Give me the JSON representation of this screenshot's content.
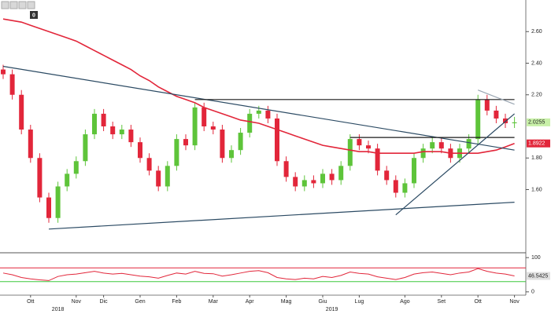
{
  "toolbar": {
    "badge": "0"
  },
  "chart_data": [
    {
      "type": "candlestick",
      "categories": [
        null,
        null,
        null,
        "Ott",
        null,
        null,
        null,
        null,
        "Nov",
        null,
        null,
        "Dic",
        null,
        null,
        null,
        "Gen",
        null,
        null,
        null,
        "Feb",
        null,
        null,
        null,
        "Mar",
        null,
        null,
        null,
        "Apr",
        null,
        null,
        null,
        "Mag",
        null,
        null,
        null,
        "Giu",
        null,
        null,
        null,
        "Lug",
        null,
        null,
        null,
        null,
        "Ago",
        null,
        null,
        null,
        "Set",
        null,
        null,
        null,
        "Ott",
        null,
        null,
        null,
        "Nov"
      ],
      "years": [
        null,
        null,
        null,
        null,
        null,
        null,
        "2018",
        null,
        null,
        null,
        null,
        null,
        null,
        null,
        null,
        null,
        null,
        null,
        null,
        null,
        null,
        null,
        null,
        null,
        null,
        null,
        null,
        null,
        null,
        null,
        null,
        null,
        null,
        null,
        null,
        null,
        "2019",
        null,
        null,
        null,
        null,
        null,
        null,
        null,
        null,
        null,
        null,
        null,
        null,
        null,
        null,
        null,
        null,
        null,
        null,
        null,
        null
      ],
      "open": [
        2.36,
        2.33,
        2.2,
        1.98,
        1.8,
        1.55,
        1.42,
        1.62,
        1.7,
        1.78,
        1.95,
        2.08,
        2.0,
        1.95,
        1.98,
        1.9,
        1.8,
        1.72,
        1.62,
        1.75,
        1.92,
        1.88,
        2.12,
        2.0,
        1.98,
        1.8,
        1.85,
        1.96,
        2.08,
        2.1,
        2.05,
        1.78,
        1.68,
        1.62,
        1.66,
        1.64,
        1.7,
        1.66,
        1.75,
        1.92,
        1.88,
        1.86,
        1.72,
        1.66,
        1.58,
        1.64,
        1.8,
        1.86,
        1.9,
        1.86,
        1.8,
        1.86,
        1.92,
        2.17,
        2.1,
        2.05,
        2.02
      ],
      "high": [
        2.39,
        2.36,
        2.23,
        2.01,
        1.83,
        1.58,
        1.65,
        1.73,
        1.81,
        1.98,
        2.11,
        2.11,
        2.03,
        2.01,
        2.01,
        1.93,
        1.83,
        1.75,
        1.78,
        1.95,
        1.95,
        2.15,
        2.15,
        2.03,
        2.01,
        1.88,
        1.99,
        2.11,
        2.13,
        2.13,
        2.08,
        1.81,
        1.71,
        1.69,
        1.69,
        1.73,
        1.73,
        1.78,
        1.95,
        1.95,
        1.91,
        1.89,
        1.75,
        1.69,
        1.67,
        1.83,
        1.89,
        1.93,
        1.93,
        1.89,
        1.89,
        1.95,
        2.2,
        2.2,
        2.13,
        2.08,
        2.06
      ],
      "low": [
        2.3,
        2.17,
        1.95,
        1.77,
        1.52,
        1.39,
        1.39,
        1.59,
        1.67,
        1.75,
        1.92,
        1.97,
        1.92,
        1.92,
        1.87,
        1.77,
        1.69,
        1.59,
        1.59,
        1.72,
        1.85,
        1.85,
        1.97,
        1.95,
        1.77,
        1.77,
        1.82,
        1.93,
        2.05,
        2.02,
        1.75,
        1.65,
        1.59,
        1.59,
        1.61,
        1.61,
        1.63,
        1.63,
        1.72,
        1.85,
        1.83,
        1.69,
        1.63,
        1.55,
        1.55,
        1.61,
        1.77,
        1.83,
        1.83,
        1.77,
        1.77,
        1.83,
        1.89,
        2.07,
        2.02,
        1.99,
        1.99
      ],
      "close": [
        2.33,
        2.2,
        1.98,
        1.8,
        1.55,
        1.42,
        1.62,
        1.7,
        1.78,
        1.95,
        2.08,
        2.0,
        1.95,
        1.98,
        1.9,
        1.8,
        1.72,
        1.62,
        1.75,
        1.92,
        1.88,
        2.12,
        2.0,
        1.98,
        1.8,
        1.85,
        1.96,
        2.08,
        2.1,
        2.05,
        1.78,
        1.68,
        1.62,
        1.66,
        1.64,
        1.7,
        1.66,
        1.75,
        1.92,
        1.88,
        1.86,
        1.72,
        1.66,
        1.58,
        1.64,
        1.8,
        1.86,
        1.9,
        1.86,
        1.8,
        1.86,
        1.92,
        2.17,
        2.1,
        2.05,
        2.02,
        2.0255
      ],
      "up_color": "#5ec43a",
      "down_color": "#e2263a",
      "ma": {
        "color": "#e2263a",
        "values": [
          2.68,
          2.67,
          2.66,
          2.64,
          2.62,
          2.6,
          2.58,
          2.56,
          2.54,
          2.51,
          2.48,
          2.45,
          2.42,
          2.39,
          2.36,
          2.32,
          2.29,
          2.25,
          2.22,
          2.19,
          2.17,
          2.15,
          2.12,
          2.1,
          2.08,
          2.06,
          2.04,
          2.03,
          2.02,
          2.0,
          1.98,
          1.96,
          1.94,
          1.92,
          1.9,
          1.88,
          1.87,
          1.86,
          1.85,
          1.84,
          1.84,
          1.83,
          1.83,
          1.83,
          1.83,
          1.83,
          1.84,
          1.84,
          1.84,
          1.83,
          1.83,
          1.83,
          1.83,
          1.84,
          1.85,
          1.87,
          1.8922
        ]
      },
      "trendlines": [
        {
          "color": "#2b4a63",
          "x": [
            0,
            56
          ],
          "y": [
            2.38,
            1.85
          ]
        },
        {
          "color": "#2b4a63",
          "x": [
            5,
            56
          ],
          "y": [
            1.35,
            1.52
          ]
        },
        {
          "color": "#1a1a1a",
          "x": [
            21,
            56
          ],
          "y": [
            2.17,
            2.17
          ]
        },
        {
          "color": "#1a1a1a",
          "x": [
            38,
            56
          ],
          "y": [
            1.93,
            1.93
          ]
        },
        {
          "color": "#2b4a63",
          "x": [
            43,
            56
          ],
          "y": [
            1.44,
            2.08
          ]
        },
        {
          "color": "#9aa6b2",
          "x": [
            52,
            56
          ],
          "y": [
            2.23,
            2.14
          ]
        }
      ],
      "ylim": [
        1.21,
        2.8
      ],
      "yticks": [
        {
          "value": 1.6,
          "label": "1.60"
        },
        {
          "value": 1.8,
          "label": "1.80"
        },
        {
          "value": 2.2,
          "label": "2.20"
        },
        {
          "value": 2.4,
          "label": "2.40"
        },
        {
          "value": 2.6,
          "label": "2.60"
        }
      ]
    },
    {
      "type": "line",
      "values": [
        55,
        50,
        42,
        38,
        35,
        33,
        45,
        50,
        52,
        56,
        60,
        55,
        52,
        54,
        50,
        46,
        44,
        40,
        48,
        55,
        52,
        60,
        54,
        53,
        46,
        50,
        55,
        60,
        62,
        56,
        42,
        38,
        36,
        40,
        38,
        45,
        42,
        48,
        58,
        54,
        52,
        44,
        40,
        36,
        42,
        52,
        56,
        58,
        54,
        50,
        55,
        58,
        68,
        60,
        55,
        52,
        46.5425
      ],
      "color": "#e2263a",
      "bands": [
        {
          "value": 70,
          "color": "#e2263a"
        },
        {
          "value": 30,
          "color": "#3cc83c"
        }
      ],
      "ylim": [
        -5,
        105
      ],
      "yticks": [
        0,
        100
      ]
    }
  ]
}
